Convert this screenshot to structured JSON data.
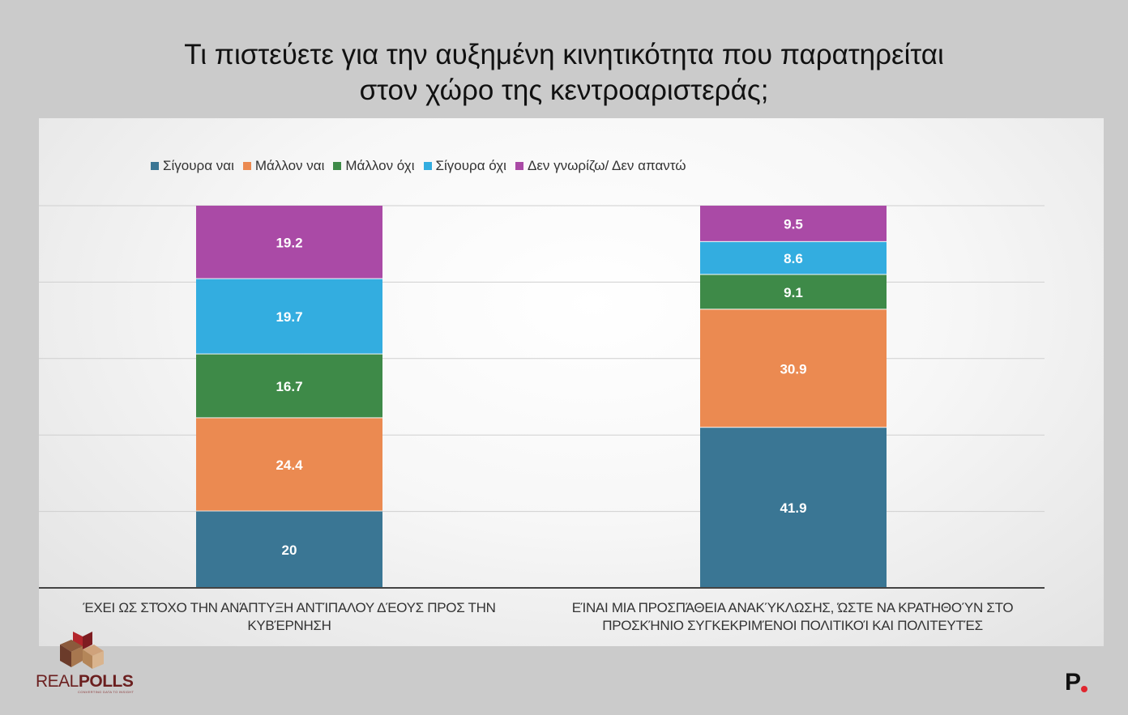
{
  "title": {
    "line1": "Τι πιστεύετε για την αυξημένη κινητικότητα που παρατηρείται",
    "line2": "στον χώρο της κεντροαριστεράς;"
  },
  "chart_data": {
    "type": "bar",
    "stacked": true,
    "categories": [
      "ΈΧΕΙ ΩΣ ΣΤΌΧΟ ΤΗΝ ΑΝΆΠΤΥΞΗ ΑΝΤΊΠΑΛΟΥ ΔΈΟΥΣ ΠΡΟΣ ΤΗΝ ΚΥΒΈΡΝΗΣΗ",
      "ΕΊΝΑΙ ΜΙΑ ΠΡΟΣΠΆΘΕΙΑ ΑΝΑΚΎΚΛΩΣΗΣ, ΏΣΤΕ ΝΑ ΚΡΑΤΗΘΟΎΝ ΣΤΟ ΠΡΟΣΚΉΝΙΟ ΣΥΓΚΕΚΡΙΜΈΝΟΙ ΠΟΛΙΤΙΚΟΊ ΚΑΙ ΠΟΛΙΤΕΥΤΈΣ"
    ],
    "series": [
      {
        "name": "Σίγουρα ναι",
        "color": "#3a7694",
        "values": [
          20,
          41.9
        ]
      },
      {
        "name": "Μάλλον ναι",
        "color": "#eb8a51",
        "values": [
          24.4,
          30.9
        ]
      },
      {
        "name": "Μάλλον όχι",
        "color": "#3e8a48",
        "values": [
          16.7,
          9.1
        ]
      },
      {
        "name": "Σίγουρα όχι",
        "color": "#33ade0",
        "values": [
          19.7,
          8.6
        ]
      },
      {
        "name": "Δεν γνωρίζω/ Δεν απαντώ",
        "color": "#aa4aa6",
        "values": [
          19.2,
          9.5
        ]
      }
    ],
    "data_labels": [
      [
        "20",
        "24.4",
        "16.7",
        "19.7",
        "19.2"
      ],
      [
        "41.9",
        "30.9",
        "9.1",
        "8.6",
        "9.5"
      ]
    ],
    "ylim": [
      0,
      100
    ],
    "grid": true,
    "legend_position": "top-left"
  },
  "logo": {
    "text_light": "REAL",
    "text_bold": "POLLS",
    "tagline": "CONVERTING DATA TO INSIGHT"
  },
  "brand_mark": "P"
}
